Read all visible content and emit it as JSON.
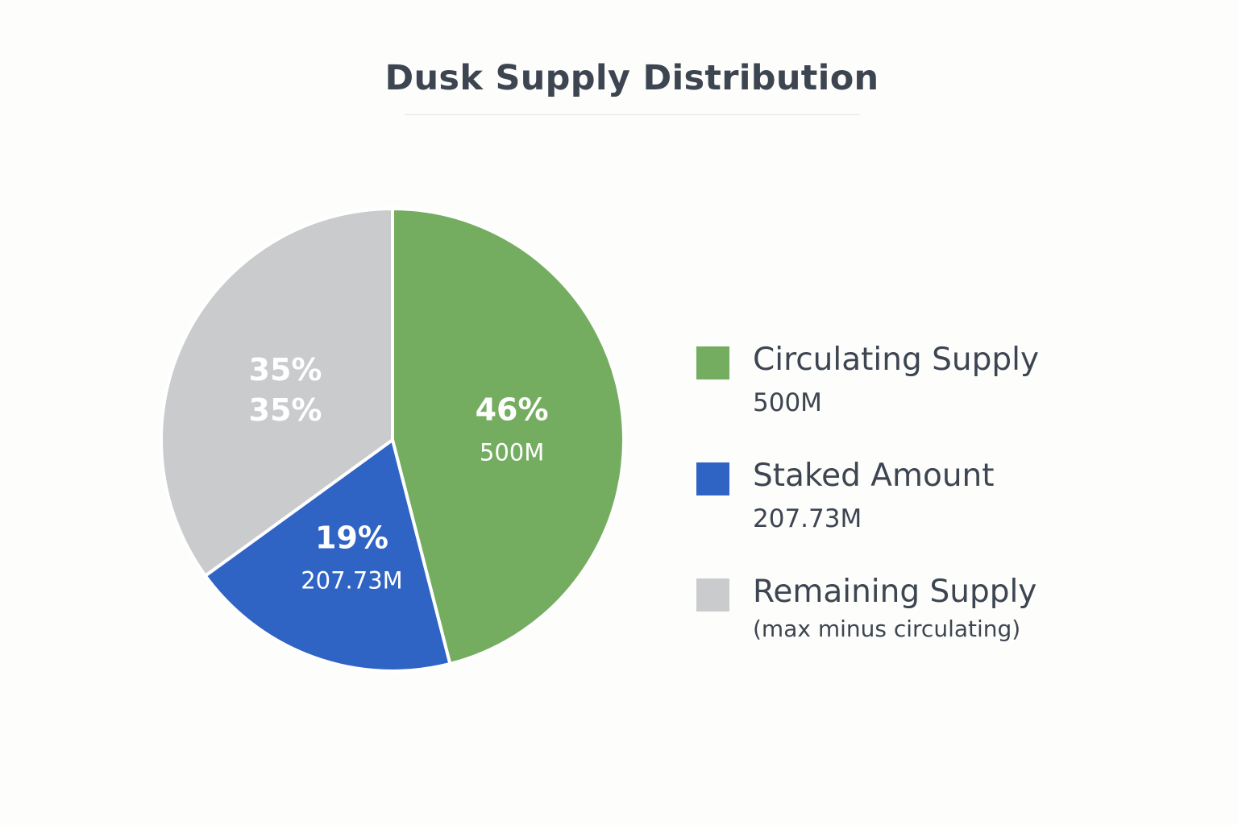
{
  "chart_data": {
    "type": "pie",
    "title": "Dusk Supply Distribution",
    "slices": [
      {
        "name": "Circulating Supply",
        "percent": 46,
        "percent_label": "46%",
        "value_label": "500M",
        "legend_value": "500M",
        "color": "#74ad60"
      },
      {
        "name": "Staked Amount",
        "percent": 19,
        "percent_label": "19%",
        "value_label": "207.73M",
        "legend_value": "207.73M",
        "color": "#2f63c4"
      },
      {
        "name": "Remaining Supply",
        "percent": 35,
        "percent_label": "35%",
        "value_label": "35%",
        "legend_value": "(max minus circulating)",
        "color": "#c9cbcc"
      }
    ],
    "legend_position": "right"
  }
}
